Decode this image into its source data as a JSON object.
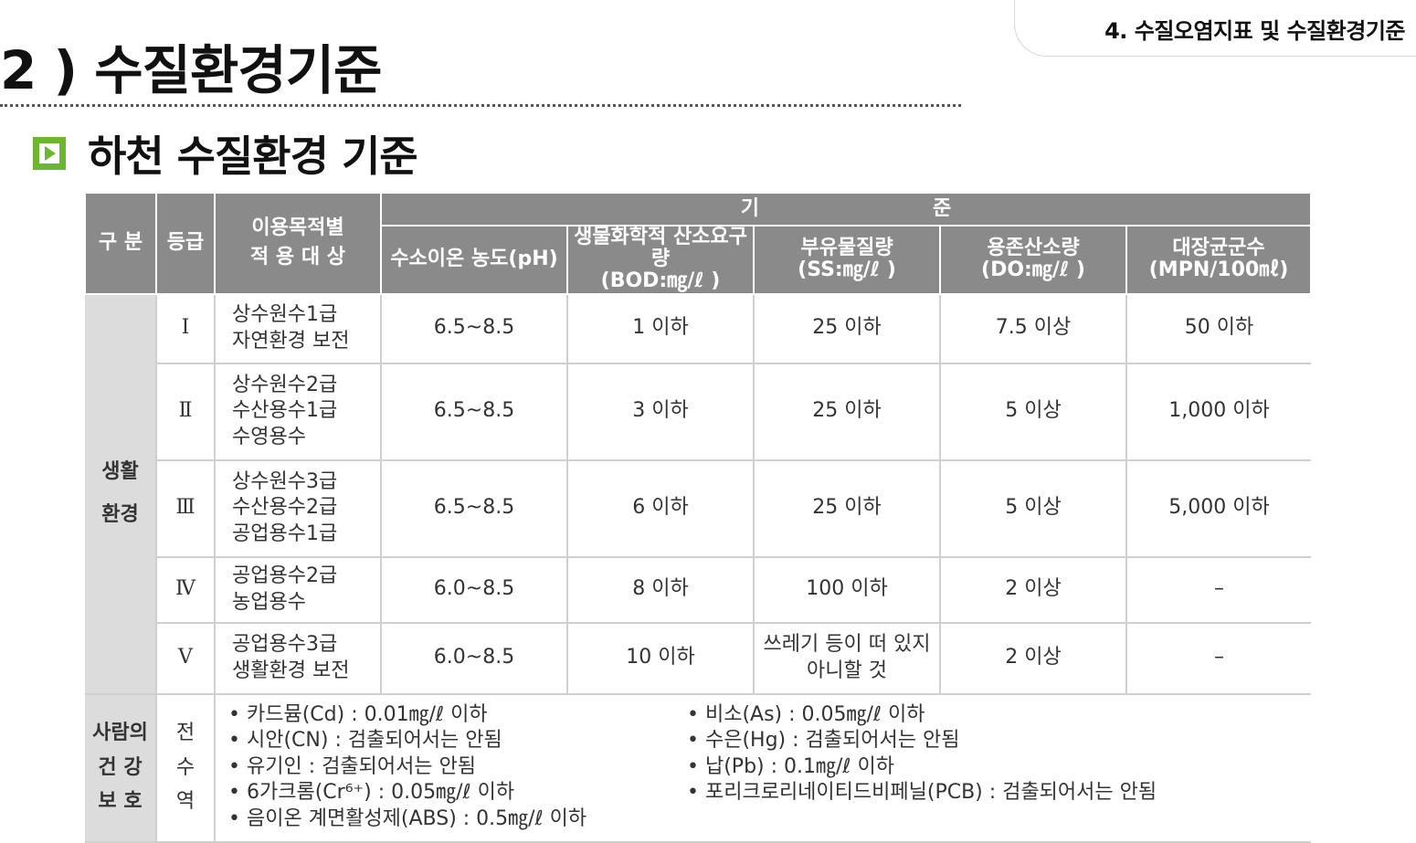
{
  "chapter_tab": "4. 수질오염지표 및 수질환경기준",
  "page_title": "2 ) 수질환경기준",
  "section_heading": "하천 수질환경 기준",
  "table": {
    "header": {
      "category": "구 분",
      "grade": "등급",
      "usage": [
        "이용목적별",
        "적 용 대 상"
      ],
      "criteria_left": "기",
      "criteria_right": "준",
      "columns": [
        {
          "name": "수소이온 농도(pH)",
          "unit": ""
        },
        {
          "name": "생물화학적 산소요구량",
          "unit": "(BOD:㎎/ℓ )"
        },
        {
          "name": "부유물질량",
          "unit": "(SS:㎎/ℓ )"
        },
        {
          "name": "용존산소량",
          "unit": "(DO:㎎/ℓ )"
        },
        {
          "name": "대장균군수",
          "unit": "(MPN/100㎖)"
        }
      ]
    },
    "living_env": {
      "label": [
        "생활",
        "환경"
      ],
      "rows": [
        {
          "grade": "Ⅰ",
          "usage": [
            "상수원수1급",
            "자연환경 보전"
          ],
          "ph": "6.5~8.5",
          "bod": "1 이하",
          "ss": [
            "25 이하"
          ],
          "do": "7.5 이상",
          "coliform": "50 이하"
        },
        {
          "grade": "Ⅱ",
          "usage": [
            "상수원수2급",
            "수산용수1급",
            "수영용수"
          ],
          "ph": "6.5~8.5",
          "bod": "3 이하",
          "ss": [
            "25 이하"
          ],
          "do": "5 이상",
          "coliform": "1,000 이하"
        },
        {
          "grade": "Ⅲ",
          "usage": [
            "상수원수3급",
            "수산용수2급",
            "공업용수1급"
          ],
          "ph": "6.5~8.5",
          "bod": "6 이하",
          "ss": [
            "25 이하"
          ],
          "do": "5 이상",
          "coliform": "5,000 이하"
        },
        {
          "grade": "Ⅳ",
          "usage": [
            "공업용수2급",
            "농업용수"
          ],
          "ph": "6.0~8.5",
          "bod": "8 이하",
          "ss": [
            "100 이하"
          ],
          "do": "2 이상",
          "coliform": "–"
        },
        {
          "grade": "Ⅴ",
          "usage": [
            "공업용수3급",
            "생활환경 보전"
          ],
          "ph": "6.0~8.5",
          "bod": "10 이하",
          "ss": [
            "쓰레기 등이 떠 있지",
            "아니할 것"
          ],
          "do": "2 이상",
          "coliform": "–"
        }
      ]
    },
    "health": {
      "label": [
        "사람의",
        "건 강",
        "보 호"
      ],
      "grade": [
        "전",
        "수",
        "역"
      ],
      "left_items": [
        "카드뮴(Cd) : 0.01㎎/ℓ 이하",
        "시안(CN) : 검출되어서는 안됨",
        "유기인 : 검출되어서는 안됨",
        "6가크롬(Cr⁶⁺) : 0.05㎎/ℓ 이하",
        "음이온 계면활성제(ABS) : 0.5㎎/ℓ 이하"
      ],
      "right_items": [
        "비소(As) : 0.05㎎/ℓ 이하",
        "수은(Hg) : 검출되어서는 안됨",
        "납(Pb) : 0.1㎎/ℓ 이하",
        "포리크로리네이티드비페닐(PCB) : 검출되어서는 안됨"
      ]
    }
  }
}
